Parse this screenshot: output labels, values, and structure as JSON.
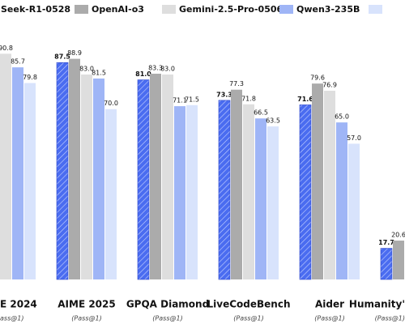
{
  "chart_data": {
    "type": "bar",
    "categories": [
      "E 2024",
      "AIME 2025",
      "GPQA Diamond",
      "LiveCodeBench",
      "Aider",
      "Humanity'"
    ],
    "subtitles": [
      "ass@1)",
      "(Pass@1)",
      "(Pass@1)",
      "(Pass@1)",
      "(Pass@1)",
      "(Pass@1)"
    ],
    "ylim": [
      6,
      111
    ],
    "series": [
      {
        "name": "Seek-R1-0528",
        "color": "#4a6cf0",
        "hatch": true,
        "bold_labels": true,
        "values": [
          null,
          87.5,
          81.0,
          73.3,
          71.6,
          17.7
        ],
        "value_labels": [
          null,
          "87.5",
          "81.0",
          "73.3",
          "71.6",
          "17.7"
        ]
      },
      {
        "name": "OpenAI-o3",
        "color": "#ababab",
        "values": [
          null,
          88.9,
          83.3,
          77.3,
          79.6,
          20.6
        ],
        "value_labels": [
          null,
          "88.9",
          "83.3",
          "77.3",
          "79.6",
          "20.6"
        ]
      },
      {
        "name": "Gemini-2.5-Pro-0506",
        "color": "#dedede",
        "values": [
          90.8,
          83.0,
          83.0,
          71.8,
          76.9,
          null
        ],
        "value_labels": [
          "90.8",
          "83.0",
          "83.0",
          "71.8",
          "76.9",
          null
        ]
      },
      {
        "name": "Qwen3-235B",
        "color": "#9fb5f6",
        "values": [
          85.7,
          81.5,
          71.1,
          66.5,
          65.0,
          null
        ],
        "value_labels": [
          "85.7",
          "81.5",
          "71.1",
          "66.5",
          "65.0",
          null
        ]
      },
      {
        "color": "#d8e3fc",
        "values": [
          79.8,
          70.0,
          71.5,
          63.5,
          57.0,
          null
        ],
        "value_labels": [
          "79.8",
          "70.0",
          "71.5",
          "63.5",
          "57.0",
          null
        ]
      }
    ]
  }
}
